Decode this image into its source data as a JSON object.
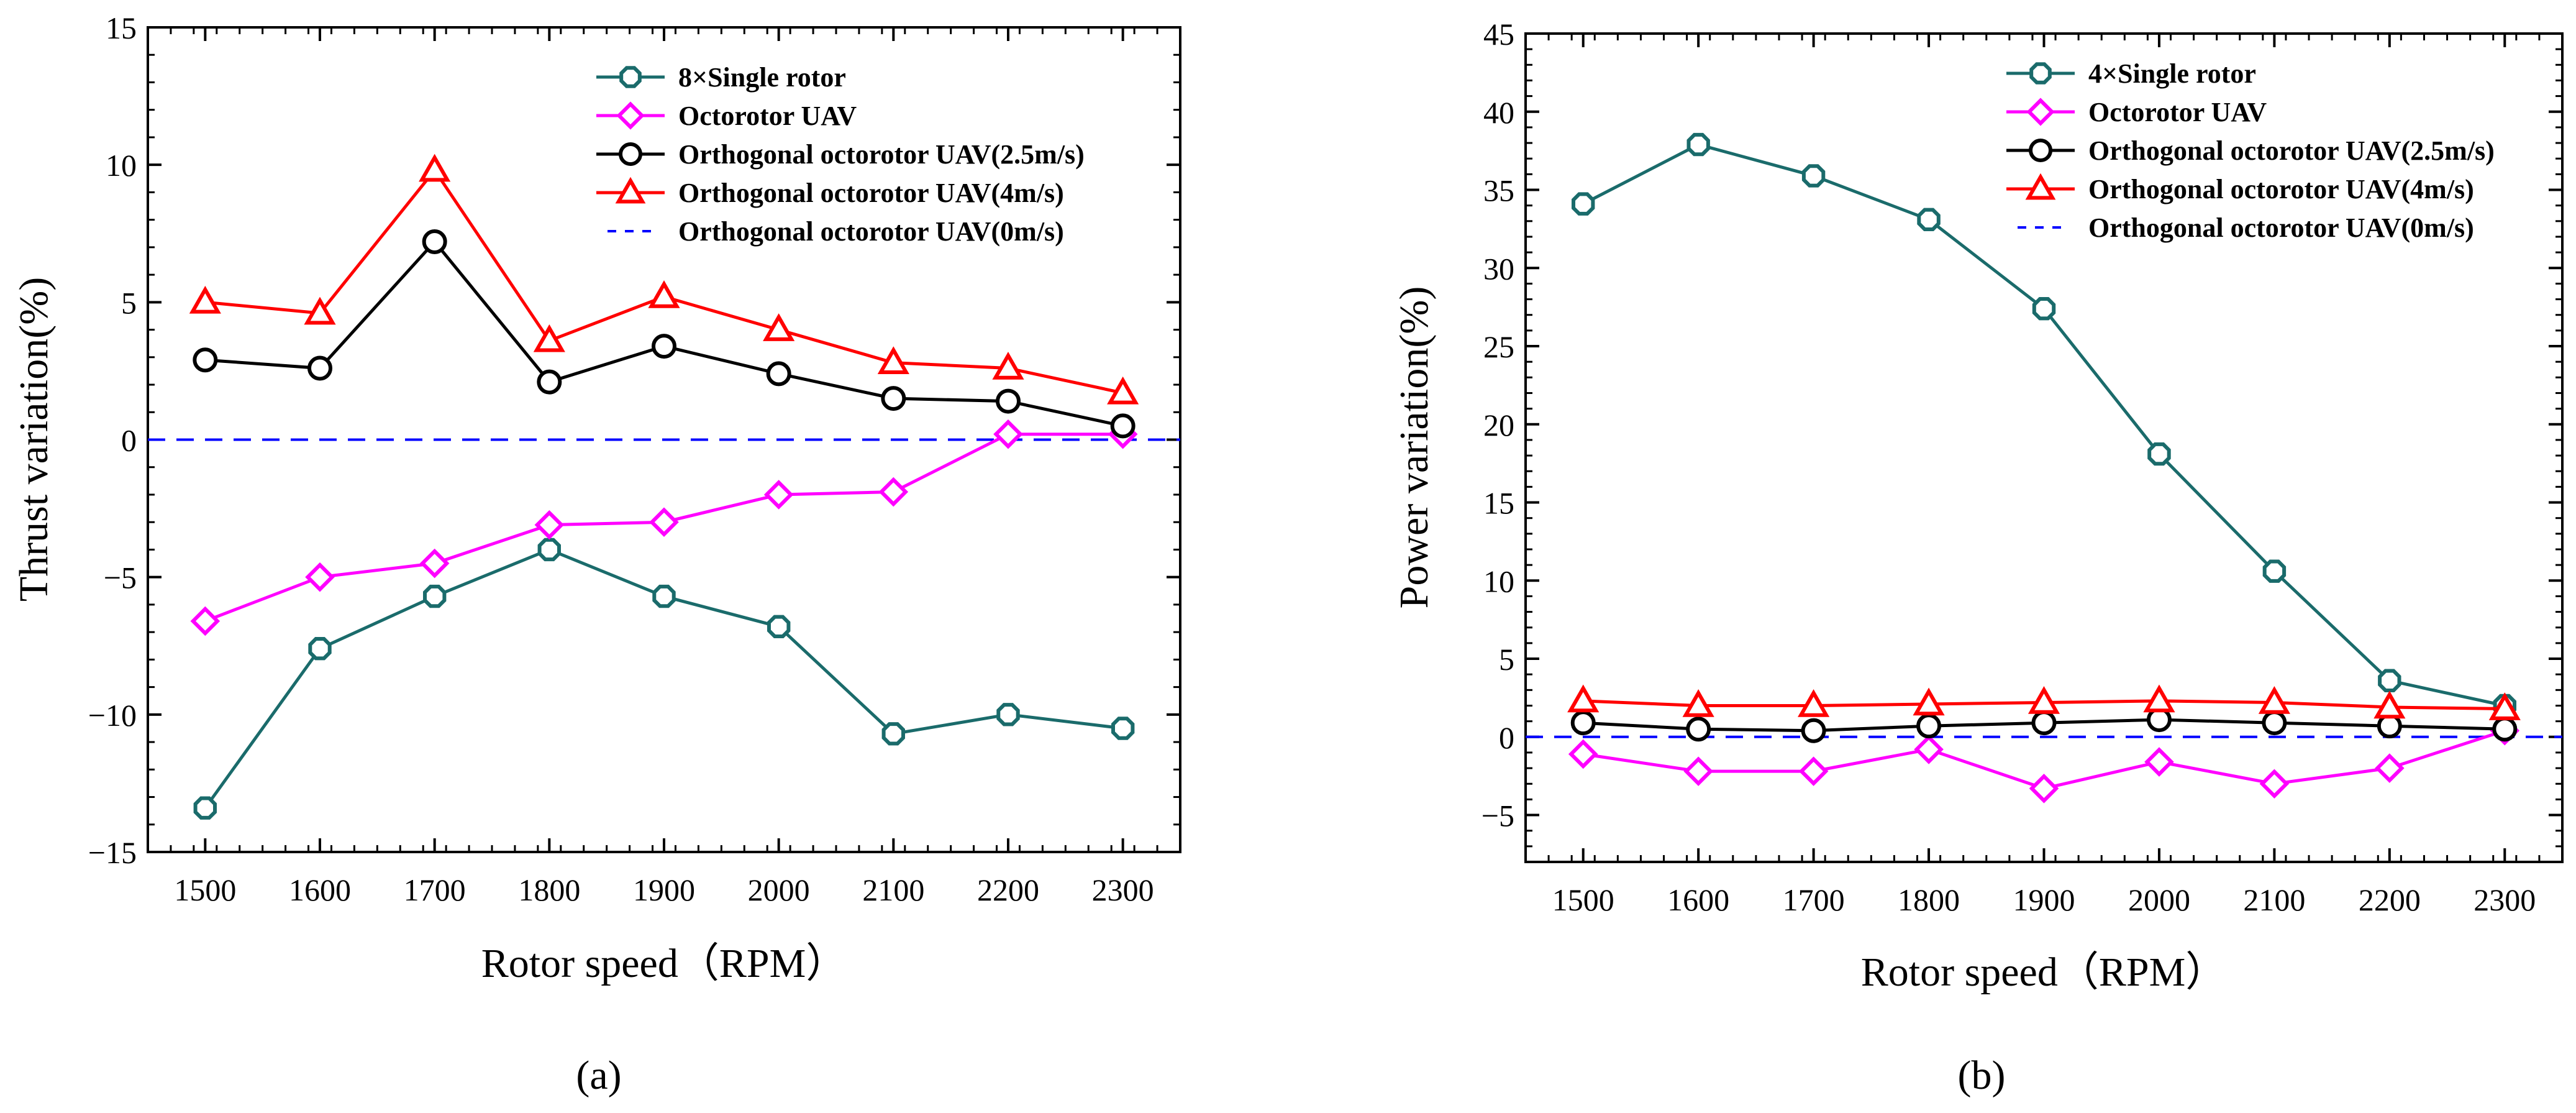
{
  "chart_data": [
    {
      "id": "a",
      "type": "line",
      "panel_label": "(a)",
      "xlabel": "Rotor speed（RPM）",
      "ylabel": "Thrust variation(%)",
      "x": [
        1500,
        1600,
        1700,
        1800,
        1900,
        2000,
        2100,
        2200,
        2300
      ],
      "xlim": [
        1450,
        2350
      ],
      "ylim": [
        -15,
        15
      ],
      "yticks": [
        -15,
        -10,
        -5,
        0,
        5,
        10,
        15
      ],
      "ytick_labels": [
        "−15",
        "−10",
        "−5",
        "0",
        "5",
        "10",
        "15"
      ],
      "xticks": [
        1500,
        1600,
        1700,
        1800,
        1900,
        2000,
        2100,
        2200,
        2300
      ],
      "xtick_labels": [
        "1500",
        "1600",
        "1700",
        "1800",
        "1900",
        "2000",
        "2100",
        "2200",
        "2300"
      ],
      "grid": false,
      "legend_position": "top-right",
      "series": [
        {
          "name": "8×Single rotor",
          "color": "#1a6b6b",
          "marker": "octagon",
          "style": "solid",
          "values": [
            -13.4,
            -7.6,
            -5.7,
            -4.0,
            -5.7,
            -6.8,
            -10.7,
            -10.0,
            -10.5
          ]
        },
        {
          "name": "Octorotor UAV",
          "color": "#ff00ff",
          "marker": "diamond",
          "style": "solid",
          "values": [
            -6.6,
            -5.0,
            -4.5,
            -3.1,
            -3.0,
            -2.0,
            -1.9,
            0.2,
            0.2
          ]
        },
        {
          "name": "Orthogonal octorotor UAV(2.5m/s)",
          "color": "#000000",
          "marker": "circle",
          "style": "solid",
          "values": [
            2.9,
            2.6,
            7.2,
            2.1,
            3.4,
            2.4,
            1.5,
            1.4,
            0.5
          ]
        },
        {
          "name": "Orthogonal octorotor UAV(4m/s)",
          "color": "#ff0000",
          "marker": "triangle",
          "style": "solid",
          "values": [
            5.0,
            4.6,
            9.8,
            3.6,
            5.2,
            4.0,
            2.8,
            2.6,
            1.7
          ]
        },
        {
          "name": "Orthogonal octorotor UAV(0m/s)",
          "color": "#0000ff",
          "marker": "none",
          "style": "dashed",
          "values": [
            0,
            0,
            0,
            0,
            0,
            0,
            0,
            0,
            0
          ]
        }
      ]
    },
    {
      "id": "b",
      "type": "line",
      "panel_label": "(b)",
      "xlabel": "Rotor speed（RPM）",
      "ylabel": "Power variation(%)",
      "x": [
        1500,
        1600,
        1700,
        1800,
        1900,
        2000,
        2100,
        2200,
        2300
      ],
      "xlim": [
        1450,
        2350
      ],
      "ylim": [
        -8,
        45
      ],
      "yticks": [
        -5,
        0,
        5,
        10,
        15,
        20,
        25,
        30,
        35,
        40,
        45
      ],
      "ytick_labels": [
        "−5",
        "0",
        "5",
        "10",
        "15",
        "20",
        "25",
        "30",
        "35",
        "40",
        "45"
      ],
      "xticks": [
        1500,
        1600,
        1700,
        1800,
        1900,
        2000,
        2100,
        2200,
        2300
      ],
      "xtick_labels": [
        "1500",
        "1600",
        "1700",
        "1800",
        "1900",
        "2000",
        "2100",
        "2200",
        "2300"
      ],
      "grid": false,
      "legend_position": "top-right",
      "series": [
        {
          "name": "4×Single rotor",
          "color": "#1a6b6b",
          "marker": "octagon",
          "style": "solid",
          "values": [
            34.1,
            37.9,
            35.9,
            33.1,
            27.4,
            18.1,
            10.6,
            3.6,
            2.0
          ]
        },
        {
          "name": "Octorotor UAV",
          "color": "#ff00ff",
          "marker": "diamond",
          "style": "solid",
          "values": [
            -1.1,
            -2.2,
            -2.2,
            -0.8,
            -3.3,
            -1.6,
            -3.0,
            -2.0,
            0.4
          ]
        },
        {
          "name": "Orthogonal octorotor UAV(2.5m/s)",
          "color": "#000000",
          "marker": "circle",
          "style": "solid",
          "values": [
            0.9,
            0.5,
            0.4,
            0.7,
            0.9,
            1.1,
            0.9,
            0.7,
            0.5
          ]
        },
        {
          "name": "Orthogonal octorotor UAV(4m/s)",
          "color": "#ff0000",
          "marker": "triangle",
          "style": "solid",
          "values": [
            2.3,
            2.0,
            2.0,
            2.1,
            2.2,
            2.3,
            2.2,
            1.9,
            1.8
          ]
        },
        {
          "name": "Orthogonal octorotor UAV(0m/s)",
          "color": "#0000ff",
          "marker": "none",
          "style": "dashed",
          "values": [
            0,
            0,
            0,
            0,
            0,
            0,
            0,
            0,
            0
          ]
        }
      ]
    }
  ]
}
